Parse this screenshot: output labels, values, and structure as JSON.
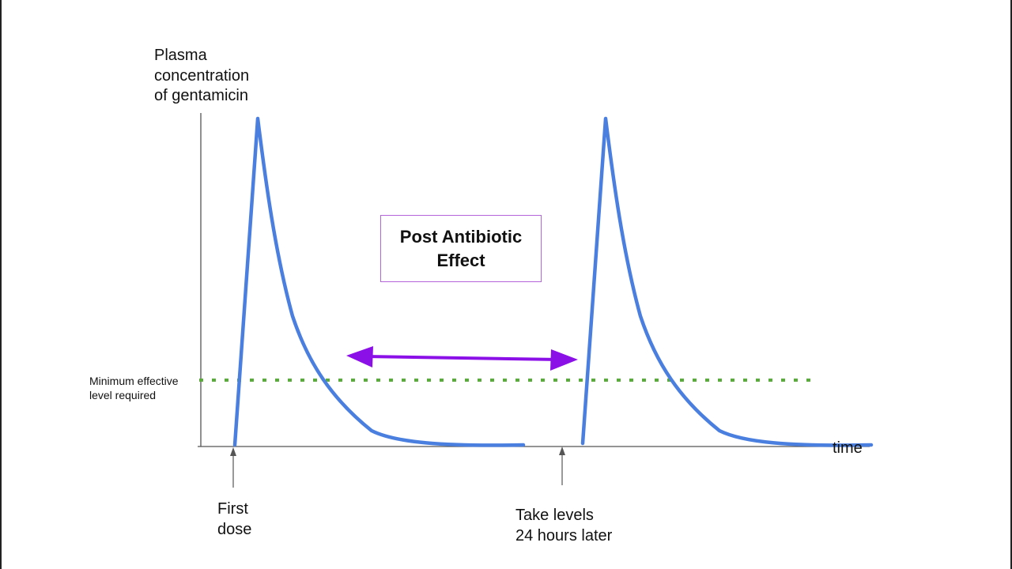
{
  "y_axis_label": "Plasma\nconcentration\nof gentamicin",
  "x_axis_label": "time",
  "threshold_label": "Minimum effective\nlevel required",
  "box_label": "Post Antibiotic\nEffect",
  "marker_first": "First\ndose",
  "marker_second": "Take levels\n24 hours later",
  "colors": {
    "curve": "#4a7fe0",
    "threshold": "#5aab3c",
    "arrow": "#8b10e8",
    "box_border": "#b565d9",
    "axis": "#555555"
  }
}
